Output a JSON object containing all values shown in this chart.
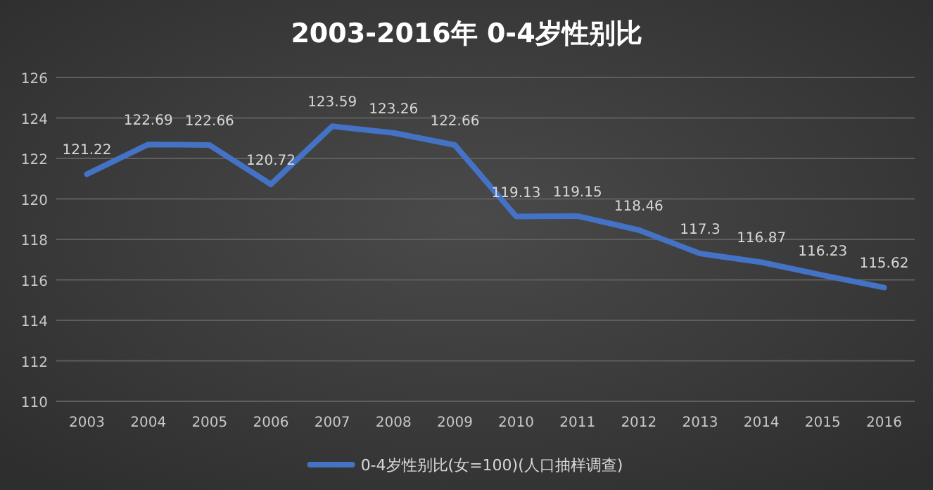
{
  "chart_data": {
    "type": "line",
    "title": "2003-2016年 0-4岁性别比",
    "categories": [
      "2003",
      "2004",
      "2005",
      "2006",
      "2007",
      "2008",
      "2009",
      "2010",
      "2011",
      "2012",
      "2013",
      "2014",
      "2015",
      "2016"
    ],
    "series": [
      {
        "name": "0-4岁性别比(女=100)(人口抽样调查)",
        "color": "#4472c4",
        "values": [
          121.22,
          122.69,
          122.66,
          120.72,
          123.59,
          123.26,
          122.66,
          119.13,
          119.15,
          118.46,
          117.3,
          116.87,
          116.23,
          115.62
        ]
      }
    ],
    "ylim": [
      110,
      126
    ],
    "yticks": [
      110,
      112,
      114,
      116,
      118,
      120,
      122,
      124,
      126
    ],
    "grid": "y",
    "legend": "bottom",
    "data_labels": true,
    "marker": "none",
    "line_style": "solid"
  }
}
